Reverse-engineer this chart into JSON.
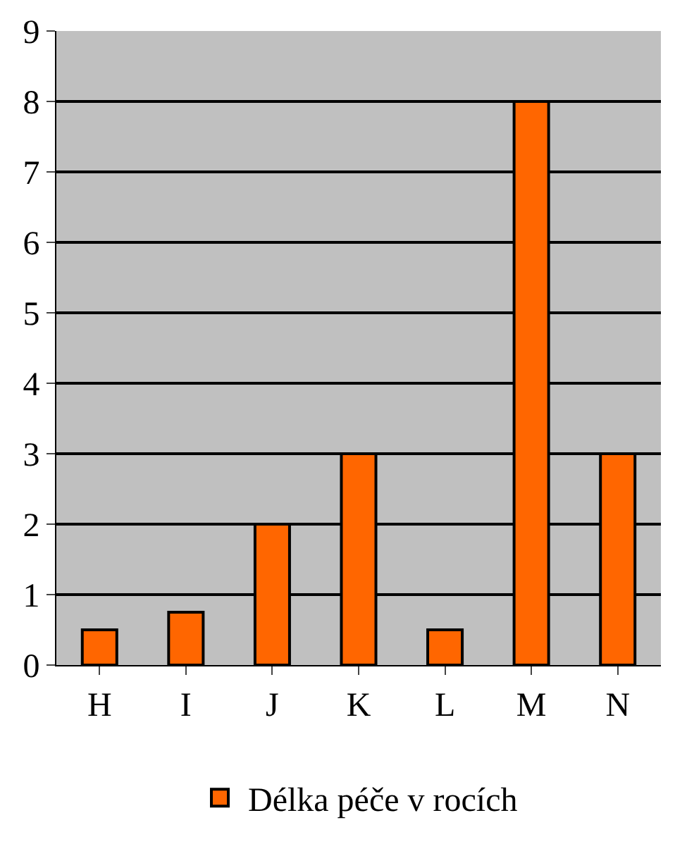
{
  "chart_data": {
    "type": "bar",
    "categories": [
      "H",
      "I",
      "J",
      "K",
      "L",
      "M",
      "N"
    ],
    "series": [
      {
        "name": "Délka péče v rocích",
        "color": "#ff6600",
        "values": [
          0.5,
          0.75,
          2,
          3,
          0.5,
          8,
          3
        ]
      }
    ],
    "ylim": [
      0,
      9
    ],
    "yticks": [
      0,
      1,
      2,
      3,
      4,
      5,
      6,
      7,
      8,
      9
    ],
    "grid": "y",
    "legend": "bottom"
  }
}
